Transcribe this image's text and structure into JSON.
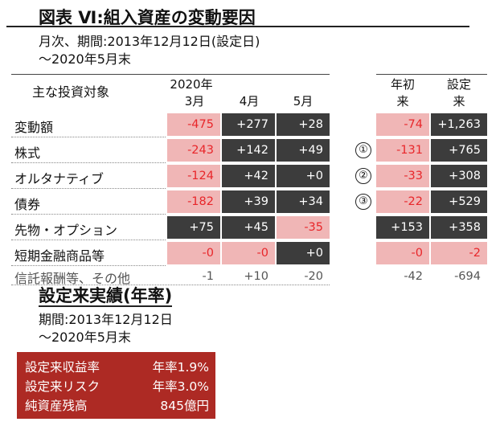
{
  "title": "図表 Ⅵ:組入資産の変動要因",
  "subtitle_line1": "月次、期間:2013年12月12日(設定日)",
  "subtitle_line2": "～2020年5月末",
  "header": {
    "label": "主な投資対象",
    "year": "2020年",
    "months": [
      "3月",
      "4月",
      "5月"
    ],
    "ytd_line1": "年初",
    "ytd_line2": "来",
    "since_line1": "設定",
    "since_line2": "来"
  },
  "chart_data": {
    "type": "table",
    "columns": [
      "3月",
      "4月",
      "5月",
      "年初来",
      "設定来"
    ],
    "rows": [
      {
        "label": "変動額",
        "values": [
          "-475",
          "+277",
          "+28",
          "-74",
          "+1,263"
        ],
        "marker": ""
      },
      {
        "label": "株式",
        "values": [
          "-243",
          "+142",
          "+49",
          "-131",
          "+765"
        ],
        "marker": "①"
      },
      {
        "label": "オルタナティブ",
        "values": [
          "-124",
          "+42",
          "+0",
          "-33",
          "+308"
        ],
        "marker": "②"
      },
      {
        "label": "債券",
        "values": [
          "-182",
          "+39",
          "+34",
          "-22",
          "+529"
        ],
        "marker": "③"
      },
      {
        "label": "先物・オプション",
        "values": [
          "+75",
          "+45",
          "-35",
          "+153",
          "+358"
        ],
        "marker": ""
      },
      {
        "label": "短期金融商品等",
        "values": [
          "-0",
          "-0",
          "+0",
          "-0",
          "-2"
        ],
        "marker": ""
      },
      {
        "label": "信託報酬等、その他",
        "values": [
          "-1",
          "+10",
          "-20",
          "-42",
          "-694"
        ],
        "marker": ""
      }
    ]
  },
  "performance": {
    "title": "設定来実績(年率)",
    "period_line1": "期間:2013年12月12日",
    "period_line2": "～2020年5月末",
    "items": [
      {
        "label": "設定来収益率",
        "value": "年率1.9%"
      },
      {
        "label": "設定来リスク",
        "value": "年率3.0%"
      },
      {
        "label": "純資産残高",
        "value": "845億円"
      }
    ]
  },
  "colors": {
    "positive_bg": "#3c3c3c",
    "negative_bg": "#f0b6b6",
    "negative_text": "#e8262a",
    "box_bg": "#ad2a24"
  }
}
